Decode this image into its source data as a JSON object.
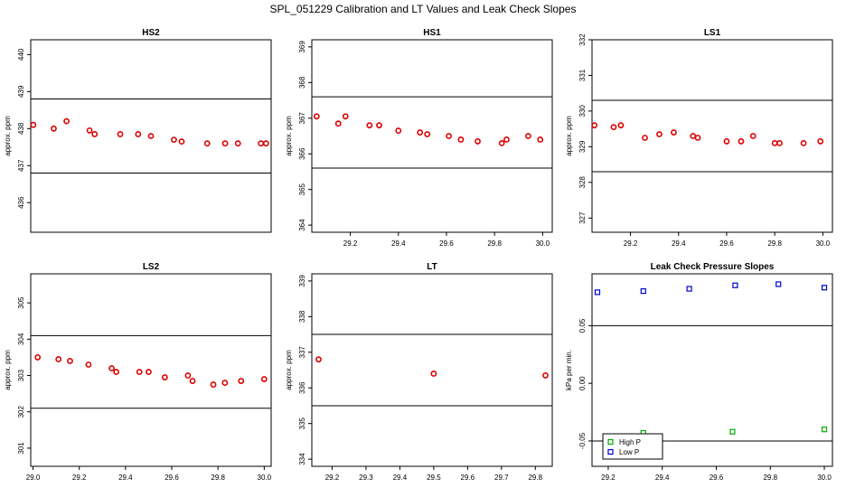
{
  "title": "SPL_051229  Calibration and LT Values and Leak Check Slopes",
  "chart_data": [
    {
      "type": "scatter",
      "title": "HS2",
      "ylabel": "approx. ppm",
      "xlim": [
        29.07,
        30.01
      ],
      "ylim": [
        435.2,
        440.4
      ],
      "xticks": [],
      "yticks": [
        "436",
        "437",
        "438",
        "439",
        "440"
      ],
      "hlines": [
        438.8,
        436.8
      ],
      "series": [
        {
          "color": "#dd0000",
          "marker": "circle",
          "x": [
            29.08,
            29.16,
            29.21,
            29.3,
            29.32,
            29.42,
            29.49,
            29.54,
            29.63,
            29.66,
            29.76,
            29.83,
            29.88,
            29.97,
            29.99
          ],
          "y": [
            438.1,
            438.0,
            438.2,
            437.95,
            437.85,
            437.85,
            437.85,
            437.8,
            437.7,
            437.65,
            437.6,
            437.6,
            437.6,
            437.6,
            437.6
          ]
        }
      ]
    },
    {
      "type": "scatter",
      "title": "HS1",
      "ylabel": "approx. ppm",
      "xlim": [
        29.04,
        30.04
      ],
      "ylim": [
        363.8,
        369.2
      ],
      "xticks": [
        "29.2",
        "29.4",
        "29.6",
        "29.8",
        "30.0"
      ],
      "yticks": [
        "364",
        "365",
        "366",
        "367",
        "368",
        "369"
      ],
      "hlines": [
        367.6,
        365.6
      ],
      "series": [
        {
          "color": "#dd0000",
          "marker": "circle",
          "x": [
            29.06,
            29.15,
            29.18,
            29.28,
            29.32,
            29.4,
            29.49,
            29.52,
            29.61,
            29.66,
            29.73,
            29.83,
            29.85,
            29.94,
            29.99
          ],
          "y": [
            367.05,
            366.85,
            367.05,
            366.8,
            366.8,
            366.65,
            366.6,
            366.55,
            366.5,
            366.4,
            366.35,
            366.3,
            366.4,
            366.5,
            366.4
          ]
        }
      ]
    },
    {
      "type": "scatter",
      "title": "LS1",
      "ylabel": "approx. ppm",
      "xlim": [
        29.04,
        30.04
      ],
      "ylim": [
        326.6,
        332.0
      ],
      "xticks": [
        "29.2",
        "29.4",
        "29.6",
        "29.8",
        "30.0"
      ],
      "yticks": [
        "327",
        "328",
        "329",
        "330",
        "331",
        "332"
      ],
      "hlines": [
        330.3,
        328.3
      ],
      "series": [
        {
          "color": "#dd0000",
          "marker": "circle",
          "x": [
            29.05,
            29.13,
            29.16,
            29.26,
            29.32,
            29.38,
            29.46,
            29.48,
            29.6,
            29.66,
            29.71,
            29.8,
            29.82,
            29.92,
            29.99
          ],
          "y": [
            329.6,
            329.55,
            329.6,
            329.25,
            329.35,
            329.4,
            329.3,
            329.25,
            329.15,
            329.15,
            329.3,
            329.1,
            329.1,
            329.1,
            329.15
          ]
        }
      ]
    },
    {
      "type": "scatter",
      "title": "LS2",
      "ylabel": "approx. ppm",
      "xlim": [
        28.99,
        30.03
      ],
      "ylim": [
        300.5,
        305.8
      ],
      "xticks": [
        "29.0",
        "29.2",
        "29.4",
        "29.6",
        "29.8",
        "30.0"
      ],
      "yticks": [
        "301",
        "302",
        "303",
        "304",
        "305"
      ],
      "hlines": [
        304.1,
        302.1
      ],
      "series": [
        {
          "color": "#dd0000",
          "marker": "circle",
          "x": [
            29.02,
            29.11,
            29.16,
            29.24,
            29.34,
            29.36,
            29.46,
            29.5,
            29.57,
            29.67,
            29.69,
            29.78,
            29.83,
            29.9,
            30.0
          ],
          "y": [
            303.5,
            303.45,
            303.4,
            303.3,
            303.2,
            303.1,
            303.1,
            303.1,
            302.95,
            303.0,
            302.85,
            302.75,
            302.8,
            302.85,
            302.9
          ]
        }
      ]
    },
    {
      "type": "scatter",
      "title": "LT",
      "ylabel": "approx. ppm",
      "xlim": [
        29.14,
        29.85
      ],
      "ylim": [
        333.8,
        339.2
      ],
      "xticks": [
        "29.2",
        "29.3",
        "29.4",
        "29.5",
        "29.6",
        "29.7",
        "29.8"
      ],
      "yticks": [
        "334",
        "335",
        "336",
        "337",
        "338",
        "339"
      ],
      "hlines": [
        337.5,
        335.5
      ],
      "series": [
        {
          "color": "#dd0000",
          "marker": "circle",
          "x": [
            29.16,
            29.5,
            29.83
          ],
          "y": [
            336.8,
            336.4,
            336.35
          ]
        }
      ]
    },
    {
      "type": "scatter",
      "title": "Leak Check Pressure Slopes",
      "ylabel": "kPa per min.",
      "xlim": [
        29.14,
        30.03
      ],
      "ylim": [
        -0.072,
        0.095
      ],
      "xticks": [
        "29.2",
        "29.4",
        "29.6",
        "29.8",
        "30.0"
      ],
      "yticks": [
        "-0.05",
        "0.00",
        "0.05"
      ],
      "hlines": [
        0.05,
        -0.05
      ],
      "legend": {
        "position": "bottom-left",
        "entries": [
          "High P",
          "Low P"
        ]
      },
      "series": [
        {
          "name": "High P",
          "color": "#00aa00",
          "marker": "square",
          "x": [
            29.33,
            29.66,
            30.0
          ],
          "y": [
            -0.043,
            -0.042,
            -0.04
          ]
        },
        {
          "name": "Low P",
          "color": "#0000cc",
          "marker": "square",
          "x": [
            29.16,
            29.33,
            29.5,
            29.67,
            29.83,
            30.0
          ],
          "y": [
            0.079,
            0.08,
            0.082,
            0.085,
            0.086,
            0.083
          ]
        }
      ]
    }
  ]
}
